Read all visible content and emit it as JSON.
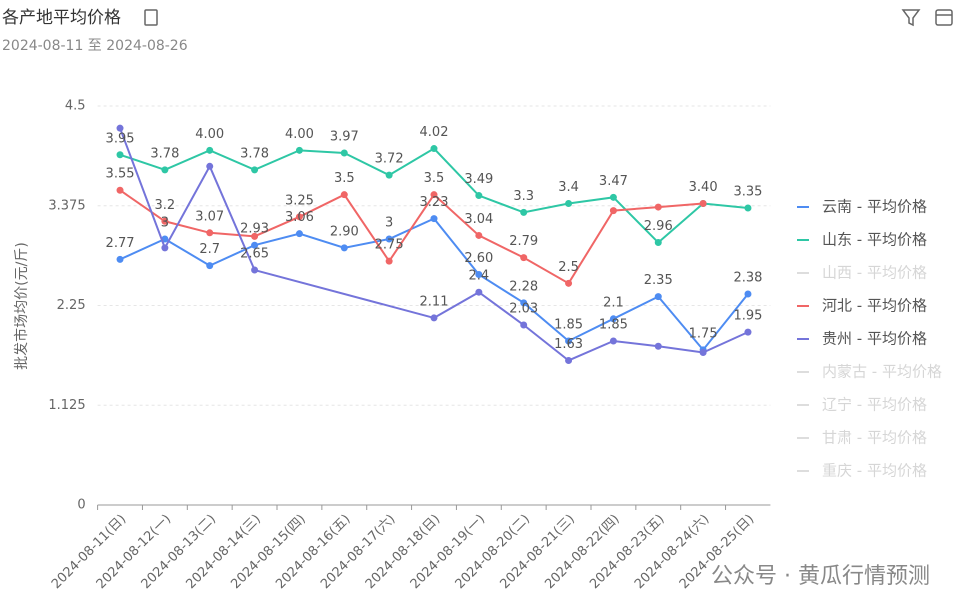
{
  "chart_data": {
    "type": "line",
    "title": "各产地平均价格",
    "subtitle": "2024-08-11 至 2024-08-26",
    "y_label": "批发市场均价(元/斤)",
    "watermark": "公众号 · 黄瓜行情预测",
    "categories": [
      "2024-08-11(日)",
      "2024-08-12(一)",
      "2024-08-13(二)",
      "2024-08-14(三)",
      "2024-08-15(四)",
      "2024-08-16(五)",
      "2024-08-17(六)",
      "2024-08-18(日)",
      "2024-08-19(一)",
      "2024-08-20(二)",
      "2024-08-21(三)",
      "2024-08-22(四)",
      "2024-08-23(五)",
      "2024-08-24(六)",
      "2024-08-25(日)"
    ],
    "ylim": [
      0,
      4.5
    ],
    "yticks": [
      0,
      1.125,
      2.25,
      3.375,
      4.5
    ],
    "grid": true,
    "connect_nulls": true,
    "legend_position": "right",
    "series": [
      {
        "name": "云南 - 平均价格",
        "color": "#4e8cf2",
        "values": [
          2.77,
          3,
          2.7,
          2.93,
          3.06,
          2.9,
          3,
          3.23,
          2.6,
          2.28,
          1.85,
          2.1,
          2.35,
          1.75,
          2.38
        ],
        "value_labels": [
          "2.77",
          "3",
          "2.7",
          "2.93",
          "3.06",
          "2.90",
          "3",
          "3.23",
          "2.60",
          "2.28",
          "1.85",
          "2.1",
          "2.35",
          "1.75",
          "2.38"
        ]
      },
      {
        "name": "山东 - 平均价格",
        "color": "#2ec7a5",
        "values": [
          3.95,
          3.78,
          4,
          3.78,
          4,
          3.97,
          3.72,
          4.02,
          3.49,
          3.3,
          3.4,
          3.47,
          2.96,
          3.4,
          3.35
        ],
        "value_labels": [
          "3.95",
          "3.78",
          "4.00",
          "3.78",
          "4.00",
          "3.97",
          "3.72",
          "4.02",
          "3.49",
          "3.3",
          "3.4",
          "3.47",
          "2.96",
          "3.40",
          "3.35"
        ]
      },
      {
        "name": "河北 - 平均价格",
        "color": "#f06666",
        "values": [
          3.55,
          3.2,
          3.07,
          3.03,
          3.25,
          3.5,
          2.75,
          3.5,
          3.04,
          2.79,
          2.5,
          3.32,
          3.36,
          3.4,
          null
        ],
        "value_labels": [
          "3.55",
          "3.2",
          "3.07",
          null,
          "3.25",
          "3.5",
          "2.75",
          "3.5",
          "3.04",
          "2.79",
          "2.5",
          null,
          null,
          null,
          null
        ]
      },
      {
        "name": "贵州 - 平均价格",
        "color": "#7474da",
        "values": [
          4.25,
          2.9,
          3.82,
          2.65,
          null,
          null,
          null,
          2.11,
          2.4,
          2.03,
          1.63,
          1.85,
          1.79,
          1.72,
          1.95
        ],
        "value_labels": [
          null,
          null,
          null,
          "2.65",
          null,
          null,
          null,
          "2.11",
          "2.4",
          "2.03",
          "1.63",
          "1.85",
          null,
          null,
          "1.95"
        ]
      }
    ],
    "inactive_legend": [
      "山西 - 平均价格",
      "内蒙古 - 平均价格",
      "辽宁 - 平均价格",
      "甘肃 - 平均价格",
      "重庆 - 平均价格"
    ]
  }
}
